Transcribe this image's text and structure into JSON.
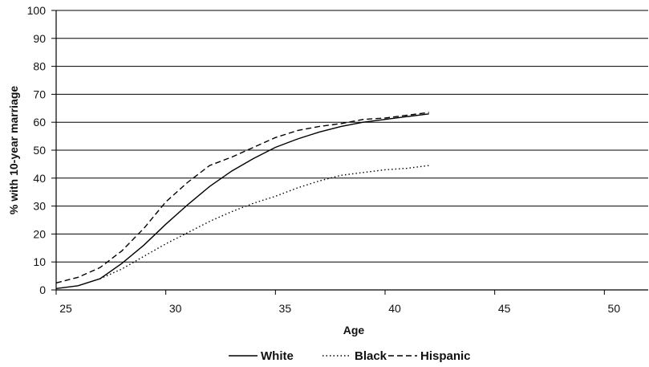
{
  "chart_data": {
    "type": "line",
    "title": "",
    "xlabel": "Age",
    "ylabel": "% with 10-year marriage",
    "xlim": [
      25,
      52
    ],
    "ylim": [
      0,
      100
    ],
    "xticks": [
      25,
      30,
      35,
      40,
      45,
      50
    ],
    "yticks": [
      0,
      10,
      20,
      30,
      40,
      50,
      60,
      70,
      80,
      90,
      100
    ],
    "grid": "horizontal",
    "legend_position": "bottom",
    "x": [
      25,
      26,
      27,
      28,
      29,
      30,
      31,
      32,
      33,
      34,
      35,
      36,
      37,
      38,
      39,
      40,
      41,
      42
    ],
    "series": [
      {
        "name": "White",
        "style": "solid",
        "values": [
          0.5,
          1.5,
          4,
          9.5,
          16,
          23.5,
          30.5,
          37,
          42.5,
          47,
          51,
          54,
          56.5,
          58.5,
          60,
          61,
          62,
          63
        ]
      },
      {
        "name": "Black",
        "style": "dotted",
        "values": [
          null,
          null,
          4,
          7.5,
          12,
          16.5,
          20.5,
          24.5,
          28,
          31,
          33.5,
          36.5,
          39,
          41,
          42,
          43,
          43.5,
          44.5
        ]
      },
      {
        "name": "Hispanic",
        "style": "dashed",
        "values": [
          2.5,
          4.5,
          8,
          14,
          22,
          31.5,
          38.5,
          44.5,
          47.5,
          51,
          54.5,
          57,
          58.5,
          59.5,
          61,
          61.5,
          62.5,
          63.5
        ]
      }
    ],
    "colors": {
      "line": "#000000",
      "grid": "#000000"
    }
  }
}
